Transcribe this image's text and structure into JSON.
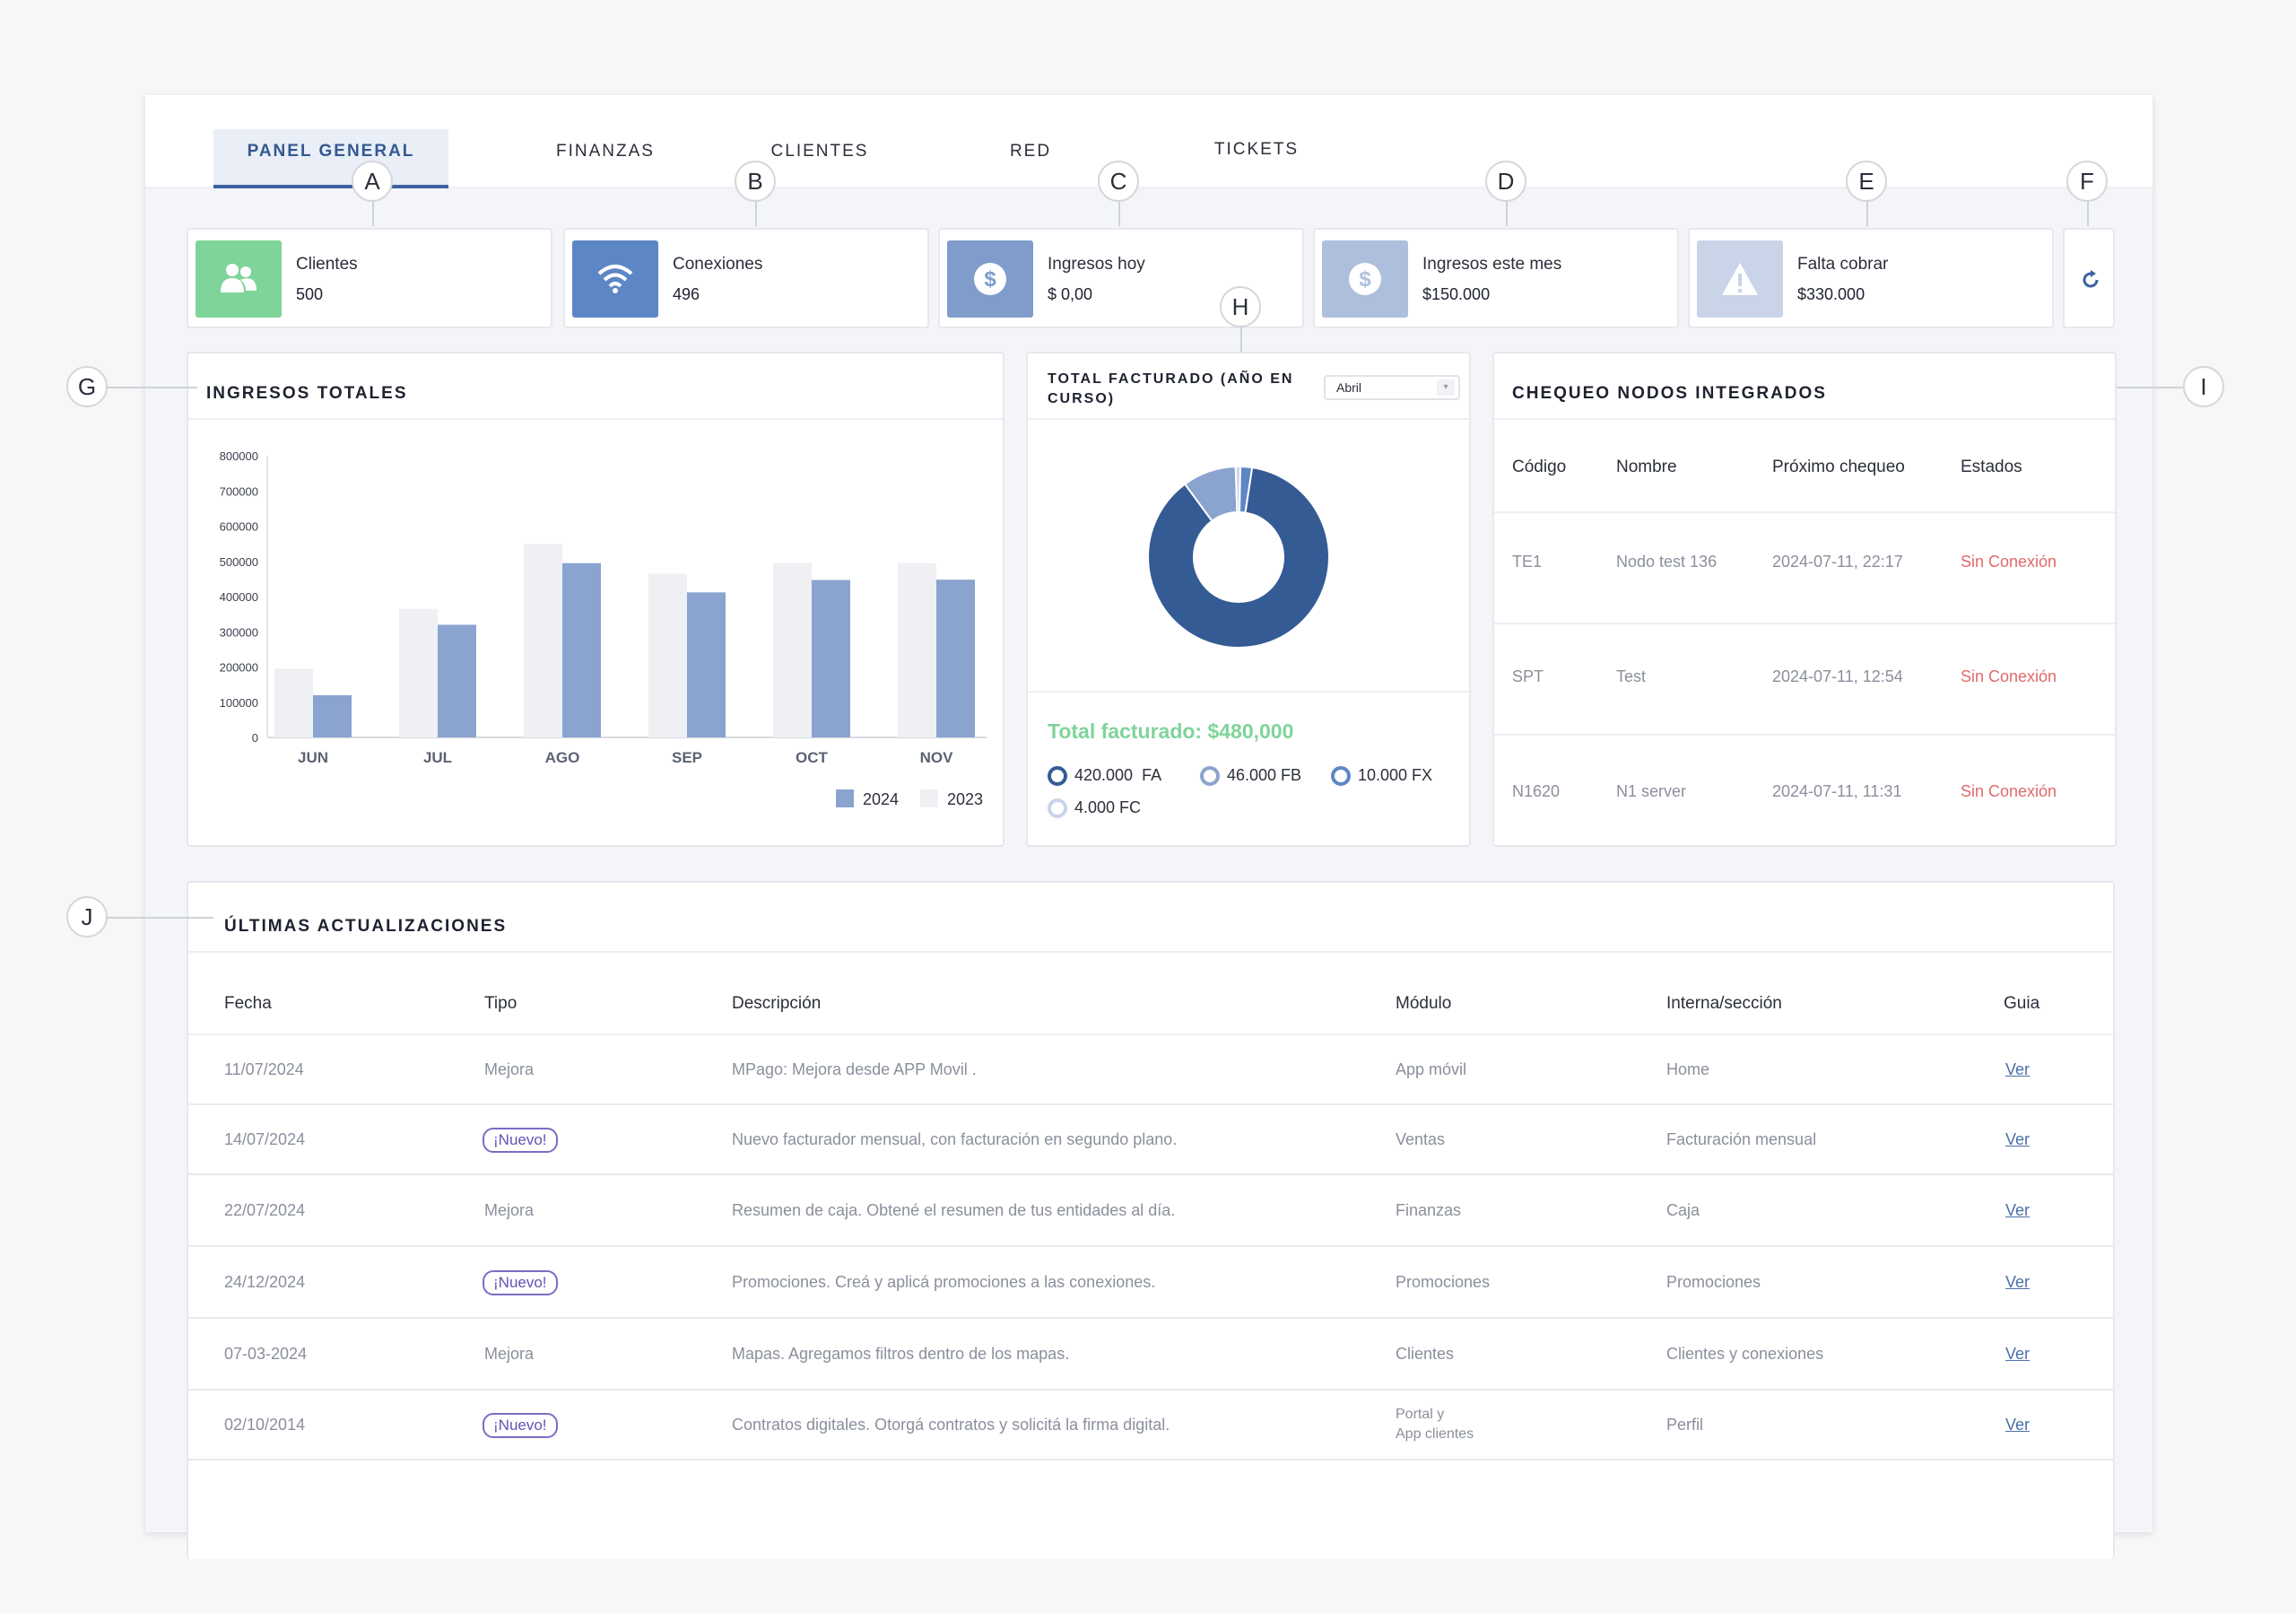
{
  "tabs": [
    {
      "label": "PANEL GENERAL",
      "active": true
    },
    {
      "label": "FINANZAS"
    },
    {
      "label": "CLIENTES"
    },
    {
      "label": "RED"
    },
    {
      "label": "TICKETS"
    }
  ],
  "callouts": [
    "A",
    "B",
    "C",
    "D",
    "E",
    "F",
    "G",
    "H",
    "I",
    "J"
  ],
  "stats": [
    {
      "label": "Clientes",
      "value": "500",
      "icon": "users-icon",
      "color": "#7fd49a"
    },
    {
      "label": "Conexiones",
      "value": "496",
      "icon": "wifi-icon",
      "color": "#5d86c5"
    },
    {
      "label": "Ingresos hoy",
      "value": "$ 0,00",
      "icon": "dollar-icon",
      "color": "#7f9ccb"
    },
    {
      "label": "Ingresos este mes",
      "value": "$150.000",
      "icon": "dollar-icon",
      "color": "#aebfdd"
    },
    {
      "label": "Falta cobrar",
      "value": "$330.000",
      "icon": "warning-icon",
      "color": "#c9d4e8"
    }
  ],
  "refresh_icon": "refresh-icon",
  "ingresos": {
    "title": "INGRESOS TOTALES"
  },
  "chart_data": {
    "type": "bar",
    "categories": [
      "JUN",
      "JUL",
      "AGO",
      "SEP",
      "OCT",
      "NOV"
    ],
    "series": [
      {
        "name": "2024",
        "values": [
          120000,
          320000,
          495000,
          412000,
          447000,
          448000
        ],
        "color": "#8aa4cf"
      },
      {
        "name": "2023",
        "values": [
          195000,
          365000,
          550000,
          465000,
          495000,
          495000
        ],
        "color": "#eef0f4"
      }
    ],
    "yticks": [
      0,
      100000,
      200000,
      300000,
      400000,
      500000,
      600000,
      700000,
      800000
    ],
    "ylim": [
      0,
      800000
    ],
    "legend": "bottom-right"
  },
  "facturado": {
    "title_line1": "TOTAL FACTURADO (AÑO EN",
    "title_line2": "CURSO)",
    "select_value": "Abril",
    "total": "Total facturado: $480,000",
    "legend": [
      {
        "value": "420.000",
        "type": "FA",
        "color": "#355b95"
      },
      {
        "value": "46.000 FB",
        "color": "#8aa4cf"
      },
      {
        "value": "10.000 FX",
        "color": "#5d86c5"
      },
      {
        "value": "4.000 FC",
        "color": "#c9d4e8"
      }
    ],
    "donut": [
      420000,
      46000,
      10000,
      4000
    ]
  },
  "nodos": {
    "title": "CHEQUEO NODOS INTEGRADOS",
    "headers": [
      "Código",
      "Nombre",
      "Próximo chequeo",
      "Estados"
    ],
    "rows": [
      [
        "TE1",
        "Nodo test 136",
        "2024-07-11, 22:17",
        "Sin Conexión"
      ],
      [
        "SPT",
        "Test",
        "2024-07-11, 12:54",
        "Sin Conexión"
      ],
      [
        "N1620",
        "N1 server",
        "2024-07-11, 11:31",
        "Sin Conexión"
      ]
    ]
  },
  "updates": {
    "title": "ÚLTIMAS ACTUALIZACIONES",
    "headers": [
      "Fecha",
      "Tipo",
      "Descripción",
      "Módulo",
      "Interna/sección",
      "Guia"
    ],
    "rows": [
      {
        "fecha": "11/07/2024",
        "tipo": "Mejora",
        "nuevo": false,
        "desc": "MPago: Mejora desde APP Movil .",
        "modulo": "App móvil",
        "modulo2": "",
        "seccion": "Home",
        "guia": "Ver"
      },
      {
        "fecha": "14/07/2024",
        "tipo": "¡Nuevo!",
        "nuevo": true,
        "desc": "Nuevo facturador mensual, con facturación en segundo plano.",
        "modulo": "Ventas",
        "modulo2": "",
        "seccion": "Facturación mensual",
        "guia": "Ver"
      },
      {
        "fecha": "22/07/2024",
        "tipo": "Mejora",
        "nuevo": false,
        "desc": "Resumen de caja. Obtené el resumen de tus entidades al día.",
        "modulo": "Finanzas",
        "modulo2": "",
        "seccion": "Caja",
        "guia": "Ver"
      },
      {
        "fecha": "24/12/2024",
        "tipo": "¡Nuevo!",
        "nuevo": true,
        "desc": "Promociones. Creá y aplicá promociones a las conexiones.",
        "modulo": "Promociones",
        "modulo2": "",
        "seccion": "Promociones",
        "guia": "Ver"
      },
      {
        "fecha": "07-03-2024",
        "tipo": "Mejora",
        "nuevo": false,
        "desc": "Mapas. Agregamos filtros dentro de los mapas.",
        "modulo": "Clientes",
        "modulo2": "",
        "seccion": "Clientes y conexiones",
        "guia": "Ver"
      },
      {
        "fecha": "02/10/2014",
        "tipo": "¡Nuevo!",
        "nuevo": true,
        "desc": "Contratos digitales. Otorgá contratos y solicitá la firma digital.",
        "modulo": "Portal y",
        "modulo2": "App clientes",
        "seccion": "Perfil",
        "guia": "Ver"
      }
    ]
  }
}
